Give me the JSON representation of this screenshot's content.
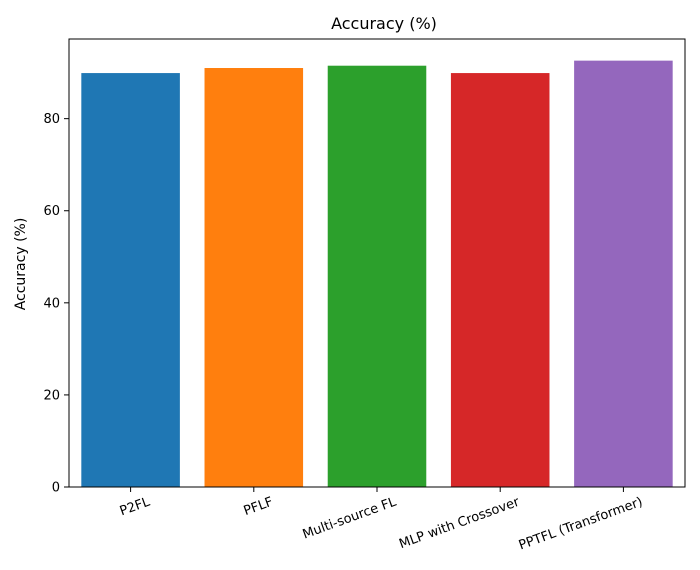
{
  "chart_data": {
    "type": "bar",
    "title": "Accuracy (%)",
    "xlabel": "",
    "ylabel": "Accuracy (%)",
    "categories": [
      "P2FL",
      "PFLF",
      "Multi-source FL",
      "MLP with Crossover",
      "PPTFL (Transformer)"
    ],
    "values": [
      89.9,
      91.0,
      91.5,
      89.9,
      92.6
    ],
    "colors": [
      "#1f77b4",
      "#ff7f0e",
      "#2ca02c",
      "#d62728",
      "#9467bd"
    ],
    "ylim": [
      0,
      97.3
    ],
    "yticks": [
      0,
      20,
      40,
      60,
      80
    ],
    "grid": false,
    "legend": "none",
    "xtick_rotation": -20
  }
}
